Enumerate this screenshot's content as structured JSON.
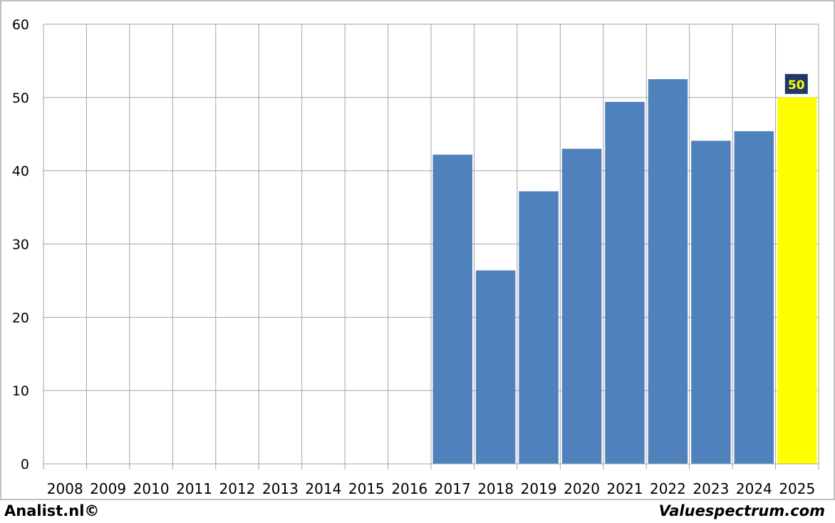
{
  "chart_data": {
    "type": "bar",
    "categories": [
      "2008",
      "2009",
      "2010",
      "2011",
      "2012",
      "2013",
      "2014",
      "2015",
      "2016",
      "2017",
      "2018",
      "2019",
      "2020",
      "2021",
      "2022",
      "2023",
      "2024",
      "2025"
    ],
    "values": [
      null,
      null,
      null,
      null,
      null,
      null,
      null,
      null,
      null,
      42.2,
      26.4,
      37.2,
      43.0,
      49.4,
      52.5,
      44.1,
      45.4,
      50
    ],
    "yticks": [
      0,
      10,
      20,
      30,
      40,
      50,
      60
    ],
    "ylim": [
      0,
      60
    ],
    "grid": true,
    "highlight": {
      "category": "2025",
      "label": "50"
    },
    "colors": {
      "bar": "#4F81BD",
      "highlight_bar": "#FFFF00",
      "label_bg": "#1F3864",
      "label_text": "#FFFF00",
      "grid": "#A6A6A6",
      "frame": "#BFBFBF"
    }
  },
  "footer": {
    "left": "Analist.nl©",
    "right": "Valuespectrum.com"
  }
}
